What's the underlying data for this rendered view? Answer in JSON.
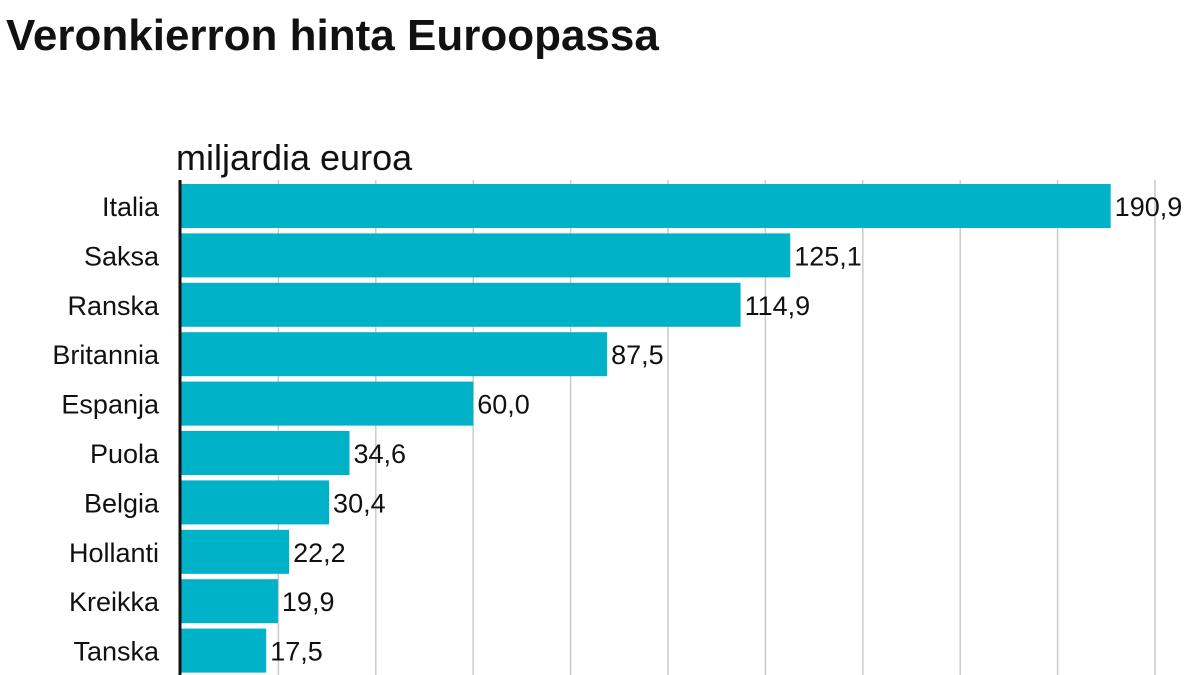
{
  "chart_data": {
    "type": "bar",
    "orientation": "horizontal",
    "title": "Veronkierron hinta Euroopassa",
    "unit_label": "miljardia euroa",
    "categories": [
      "Italia",
      "Saksa",
      "Ranska",
      "Britannia",
      "Espanja",
      "Puola",
      "Belgia",
      "Hollanti",
      "Kreikka",
      "Tanska"
    ],
    "values": [
      190.9,
      125.1,
      114.9,
      87.5,
      60.0,
      34.6,
      30.4,
      22.2,
      19.9,
      17.5
    ],
    "value_labels": [
      "190,9",
      "125,1",
      "114,9",
      "87,5",
      "60,0",
      "34,6",
      "30,4",
      "22,2",
      "19,9",
      "17,5"
    ],
    "xlim": [
      0,
      200
    ],
    "grid_step": 20,
    "grid": true,
    "bar_color": "#00b2c8"
  }
}
